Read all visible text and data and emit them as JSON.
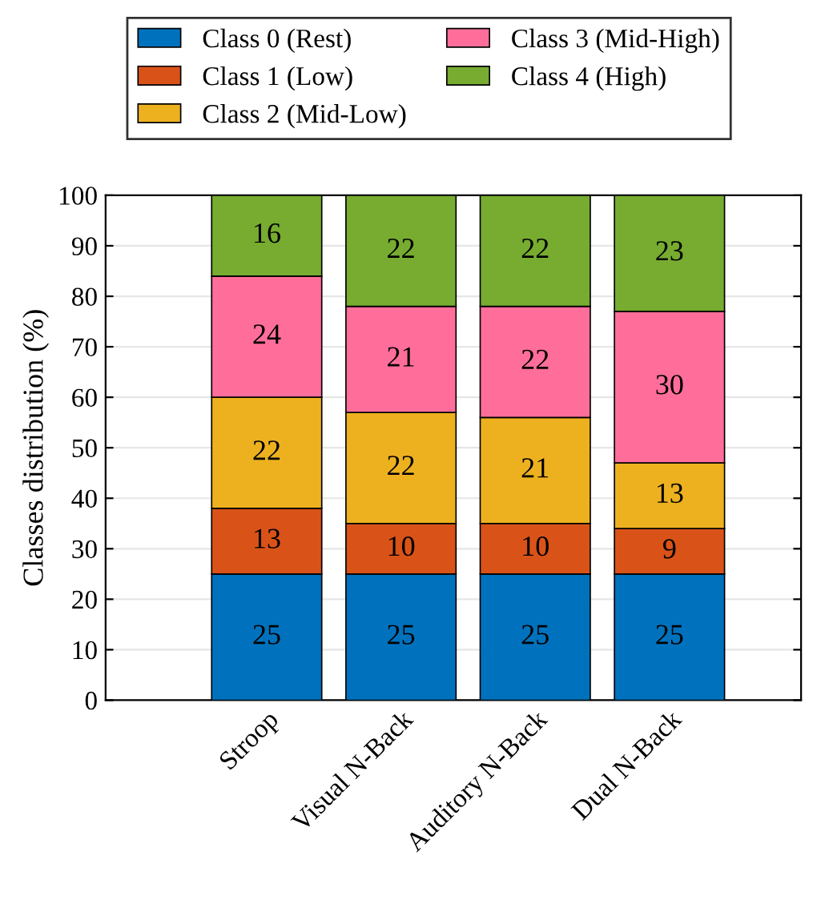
{
  "chart_data": {
    "type": "bar",
    "stacked": true,
    "ylabel": "Classes distribution (%)",
    "categories": [
      "Stroop",
      "Visual N-Back",
      "Auditory N-Back",
      "Dual N-Back"
    ],
    "series": [
      {
        "name": "Class 0 (Rest)",
        "color": "#0072bd",
        "values": [
          25,
          25,
          25,
          25
        ]
      },
      {
        "name": "Class 1 (Low)",
        "color": "#d95319",
        "values": [
          13,
          10,
          10,
          9
        ]
      },
      {
        "name": "Class 2 (Mid-Low)",
        "color": "#edb120",
        "values": [
          22,
          22,
          21,
          13
        ]
      },
      {
        "name": "Class 3 (Mid-High)",
        "color": "#ff6e9b",
        "values": [
          24,
          21,
          22,
          30
        ]
      },
      {
        "name": "Class 4 (High)",
        "color": "#77ac30",
        "values": [
          16,
          22,
          22,
          23
        ]
      }
    ],
    "ylim": [
      0,
      100
    ],
    "yticks": [
      0,
      10,
      20,
      30,
      40,
      50,
      60,
      70,
      80,
      90,
      100
    ],
    "grid": "y",
    "legend": "top",
    "data_labels": true
  }
}
